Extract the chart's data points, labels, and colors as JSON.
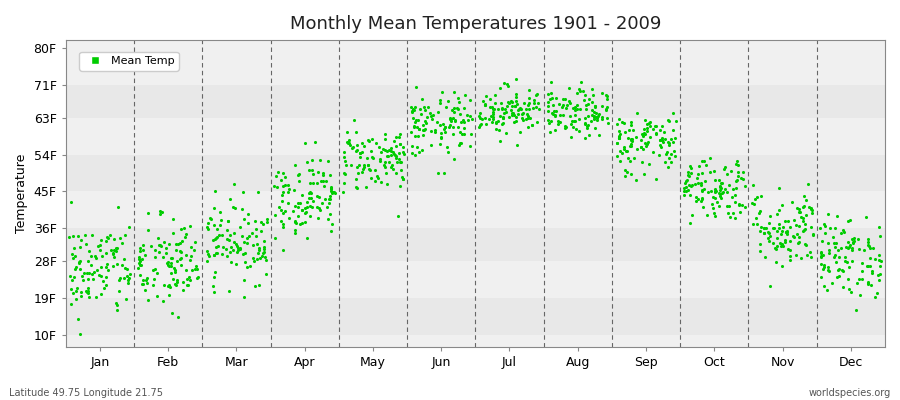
{
  "title": "Monthly Mean Temperatures 1901 - 2009",
  "ylabel": "Temperature",
  "subtitle_left": "Latitude 49.75 Longitude 21.75",
  "subtitle_right": "worldspecies.org",
  "legend_label": "Mean Temp",
  "dot_color": "#00cc00",
  "background_color": "#ffffff",
  "plot_bg_color": "#f0f0f0",
  "band_colors": [
    "#e8e8e8",
    "#f0f0f0"
  ],
  "ytick_labels": [
    "10F",
    "19F",
    "28F",
    "36F",
    "45F",
    "54F",
    "63F",
    "71F",
    "80F"
  ],
  "ytick_values": [
    10,
    19,
    28,
    36,
    45,
    54,
    63,
    71,
    80
  ],
  "months": [
    "Jan",
    "Feb",
    "Mar",
    "Apr",
    "May",
    "Jun",
    "Jul",
    "Aug",
    "Sep",
    "Oct",
    "Nov",
    "Dec"
  ],
  "xlim": [
    0,
    12
  ],
  "ylim": [
    7,
    82
  ],
  "seed": 42,
  "n_years": 109,
  "mean_temps_F": [
    26,
    27,
    33,
    44,
    53,
    61,
    65,
    64,
    57,
    46,
    36,
    29
  ],
  "std_temps_F": [
    6,
    6,
    5,
    5,
    4,
    4,
    3,
    3,
    4,
    4,
    5,
    5
  ]
}
